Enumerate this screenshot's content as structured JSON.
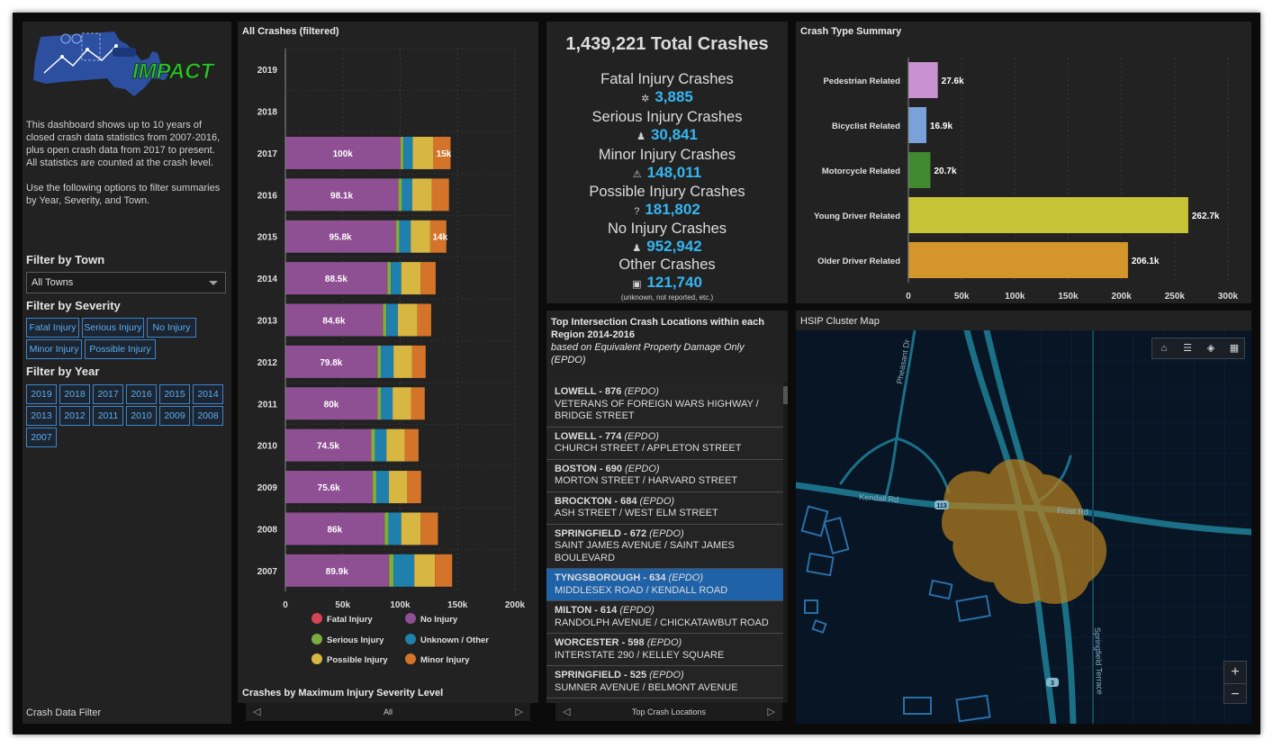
{
  "intro": {
    "p1": "This dashboard shows up to 10 years of closed crash data statistics from 2007-2016, plus open crash data from 2017 to present. All statistics are counted at the crash level.",
    "p2": "Use the following options to filter summaries by Year, Severity, and Town."
  },
  "logo": {
    "text": "IMPACT",
    "colors": {
      "state": "#2d4fa0",
      "text": "#2fc22a"
    }
  },
  "filters": {
    "town_heading": "Filter by Town",
    "town_value": "All Towns",
    "severity_heading": "Filter by Severity",
    "severity_options": [
      "Fatal Injury",
      "Serious Injury",
      "No Injury",
      "Minor Injury",
      "Possible Injury"
    ],
    "year_heading": "Filter by Year",
    "year_options": [
      "2019",
      "2018",
      "2017",
      "2016",
      "2015",
      "2014",
      "2013",
      "2012",
      "2011",
      "2010",
      "2009",
      "2008",
      "2007"
    ],
    "footer": "Crash Data Filter"
  },
  "crash_chart": {
    "footer": "Crashes by Maximum Injury Severity Level",
    "pager_label": "All"
  },
  "totals": {
    "headline": "1,439,221 Total Crashes",
    "items": [
      {
        "label": "Fatal Injury Crashes",
        "value": "3,885",
        "icon": "asterisk-icon"
      },
      {
        "label": "Serious Injury Crashes",
        "value": "30,841",
        "icon": "person-icon"
      },
      {
        "label": "Minor Injury Crashes",
        "value": "148,011",
        "icon": "warning-icon"
      },
      {
        "label": "Possible Injury Crashes",
        "value": "181,802",
        "icon": "question-icon"
      },
      {
        "label": "No Injury Crashes",
        "value": "952,942",
        "icon": "person-icon"
      },
      {
        "label": "Other Crashes",
        "value": "121,740",
        "icon": "box-icon"
      }
    ],
    "note": "(unknown, not reported, etc.)"
  },
  "intersections": {
    "title_bold": "Top Intersection Crash Locations within each Region 2014-2016",
    "title_italic": "based on Equivalent Property Damage Only (EPDO)",
    "items": [
      {
        "city": "LOWELL - 876",
        "tag": "(EPDO)",
        "street": "VETERANS OF FOREIGN WARS HIGHWAY / BRIDGE STREET",
        "selected": false
      },
      {
        "city": "LOWELL - 774",
        "tag": "(EPDO)",
        "street": "CHURCH STREET / APPLETON STREET",
        "selected": false
      },
      {
        "city": "BOSTON - 690",
        "tag": "(EPDO)",
        "street": "MORTON STREET / HARVARD STREET",
        "selected": false
      },
      {
        "city": "BROCKTON - 684",
        "tag": "(EPDO)",
        "street": "ASH STREET / WEST ELM STREET",
        "selected": false
      },
      {
        "city": "SPRINGFIELD - 672",
        "tag": "(EPDO)",
        "street": "SAINT JAMES AVENUE / SAINT JAMES BOULEVARD",
        "selected": false
      },
      {
        "city": "TYNGSBOROUGH - 634",
        "tag": "(EPDO)",
        "street": "MIDDLESEX ROAD / KENDALL ROAD",
        "selected": true
      },
      {
        "city": "MILTON - 614",
        "tag": "(EPDO)",
        "street": "RANDOLPH AVENUE / CHICKATAWBUT ROAD",
        "selected": false
      },
      {
        "city": "WORCESTER - 598",
        "tag": "(EPDO)",
        "street": "INTERSTATE 290 / KELLEY SQUARE",
        "selected": false
      },
      {
        "city": "SPRINGFIELD - 525",
        "tag": "(EPDO)",
        "street": "SUMNER AVENUE / BELMONT AVENUE",
        "selected": false
      }
    ],
    "pager_label": "Top Crash Locations"
  },
  "map": {
    "title": "HSIP Cluster Map",
    "labels": {
      "kendall": "Kendall Rd",
      "frost": "Frost Rd",
      "pheasant": "Pheasant Dr",
      "springfield": "Springfield Terrace",
      "route113": "113",
      "route3": "3"
    },
    "tools": [
      "home-icon",
      "list-icon",
      "layers-icon",
      "basemap-icon"
    ],
    "zoom_in": "+",
    "zoom_out": "−"
  },
  "chart_data": [
    {
      "type": "bar",
      "orientation": "horizontal",
      "stacked": true,
      "title": "All Crashes (filtered)",
      "categories": [
        "2019",
        "2018",
        "2017",
        "2016",
        "2015",
        "2014",
        "2013",
        "2012",
        "2011",
        "2010",
        "2009",
        "2008",
        "2007"
      ],
      "series": [
        {
          "name": "No Injury",
          "color": "#8e4f93",
          "values": [
            0.5,
            0.5,
            100,
            98.1,
            95.8,
            88.5,
            84.6,
            79.8,
            80,
            74.5,
            75.6,
            86,
            89.9
          ],
          "labels": [
            "",
            "",
            "100k",
            "98.1k",
            "95.8k",
            "88.5k",
            "84.6k",
            "79.8k",
            "80k",
            "74.5k",
            "75.6k",
            "86k",
            "89.9k"
          ]
        },
        {
          "name": "Fatal Injury",
          "color": "#d64553",
          "values": [
            0,
            0,
            0.4,
            0.4,
            0.4,
            0.4,
            0.4,
            0.4,
            0.4,
            0.4,
            0.4,
            0.4,
            0.4
          ],
          "labels": []
        },
        {
          "name": "Serious Injury",
          "color": "#7cad3f",
          "values": [
            0,
            0,
            2.5,
            3,
            3,
            3,
            3,
            3,
            3,
            3.1,
            3.2,
            3.5,
            4
          ],
          "labels": []
        },
        {
          "name": "Unknown / Other",
          "color": "#1f7fad",
          "values": [
            0,
            0,
            8,
            9,
            10,
            9,
            10,
            11,
            10,
            10,
            11,
            11,
            18
          ],
          "labels": []
        },
        {
          "name": "Possible Injury",
          "color": "#d7b641",
          "values": [
            0,
            0,
            18,
            17,
            17,
            17,
            17,
            16,
            16,
            16,
            16,
            17,
            18
          ],
          "labels": []
        },
        {
          "name": "Minor Injury",
          "color": "#d4742a",
          "values": [
            0,
            0,
            15,
            15,
            14,
            13,
            12,
            12,
            12,
            12,
            12,
            15,
            15
          ],
          "labels": [
            "",
            "",
            "15k",
            "",
            "14k",
            "",
            "",
            "",
            "",
            "",
            "",
            "",
            ""
          ]
        }
      ],
      "xlim": [
        0,
        200
      ],
      "x_ticks": [
        "0",
        "50k",
        "100k",
        "150k",
        "200k"
      ],
      "legend": "bottom",
      "legend_order": [
        "Fatal Injury",
        "No Injury",
        "Serious Injury",
        "Unknown / Other",
        "Possible Injury",
        "Minor Injury"
      ],
      "grid": true
    },
    {
      "type": "bar",
      "orientation": "horizontal",
      "title": "Crash Type Summary",
      "categories": [
        "Pedestrian Related",
        "Bicyclist Related",
        "Motorcycle Related",
        "Young Driver Related",
        "Older Driver Related"
      ],
      "values": [
        27.6,
        16.9,
        20.7,
        262.7,
        206.1
      ],
      "labels": [
        "27.6k",
        "16.9k",
        "20.7k",
        "262.7k",
        "206.1k"
      ],
      "colors": [
        "#c792cf",
        "#7aa1d9",
        "#3f8a2e",
        "#c7c537",
        "#d4952a"
      ],
      "xlim": [
        0,
        300
      ],
      "x_ticks": [
        "0",
        "50k",
        "100k",
        "150k",
        "200k",
        "250k",
        "300k"
      ],
      "grid": true
    }
  ]
}
